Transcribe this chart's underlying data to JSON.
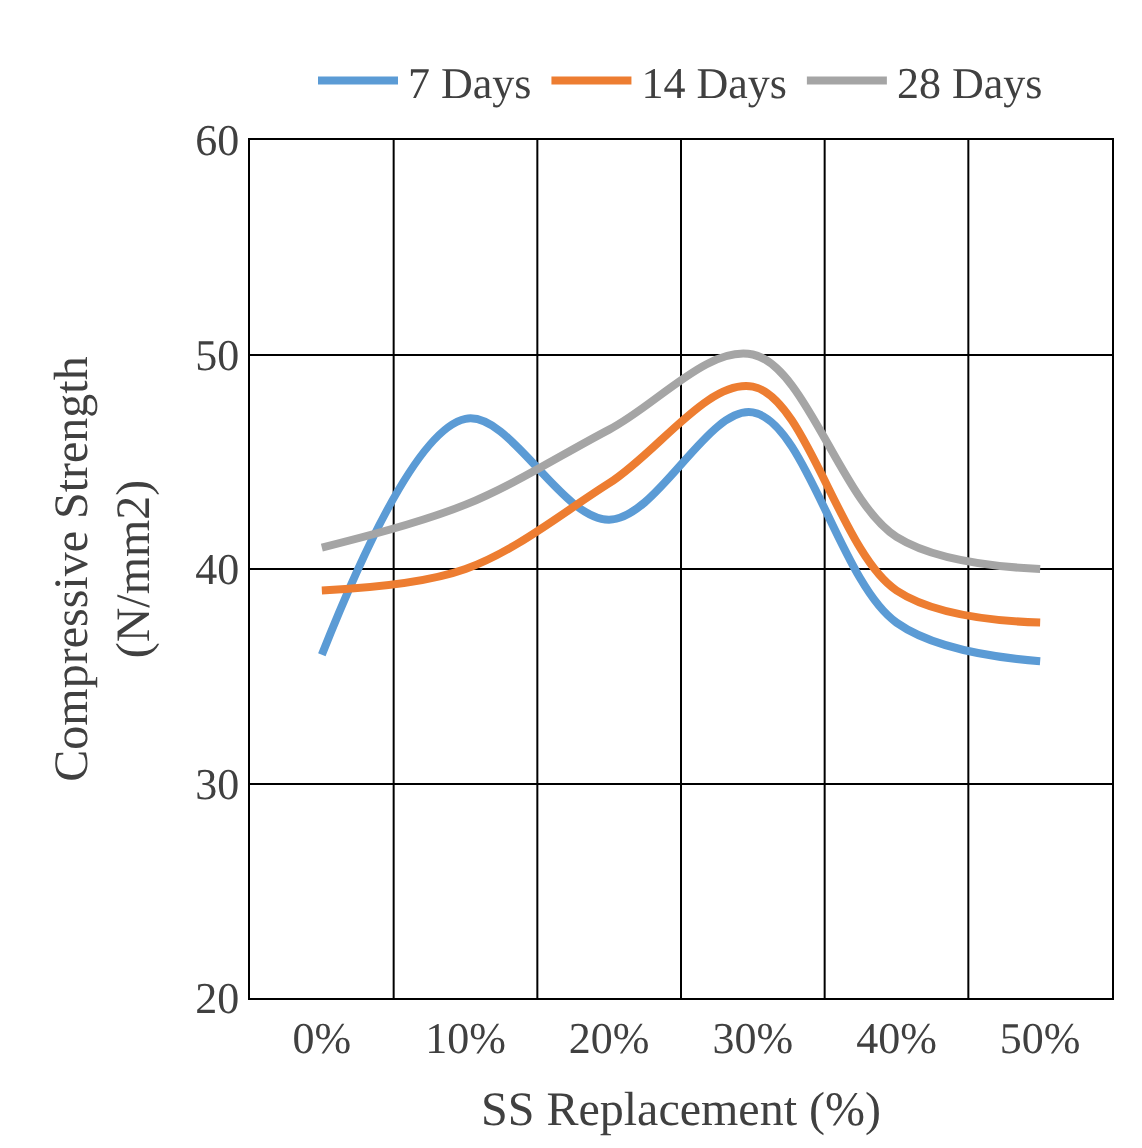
{
  "chart_data": {
    "type": "line",
    "xlabel": "SS Replacement (%)",
    "ylabel": "Compressive Strength\n(N/mm2)",
    "categories": [
      "0%",
      "10%",
      "20%",
      "30%",
      "40%",
      "50%"
    ],
    "series": [
      {
        "name": "7 Days",
        "color": "#5b9bd5",
        "values": [
          36,
          47,
          42.3,
          47.3,
          37.5,
          35.7
        ]
      },
      {
        "name": "14 Days",
        "color": "#ed7d31",
        "values": [
          39,
          40,
          44,
          48.5,
          39,
          37.5
        ]
      },
      {
        "name": "28 Days",
        "color": "#a5a5a5",
        "values": [
          41,
          43,
          46.5,
          50,
          41.5,
          40
        ]
      }
    ],
    "ylim": [
      20,
      60
    ],
    "yticks": [
      20,
      30,
      40,
      50,
      60
    ],
    "grid": true,
    "legend": "top",
    "marker": "none",
    "line_style": "solid"
  }
}
